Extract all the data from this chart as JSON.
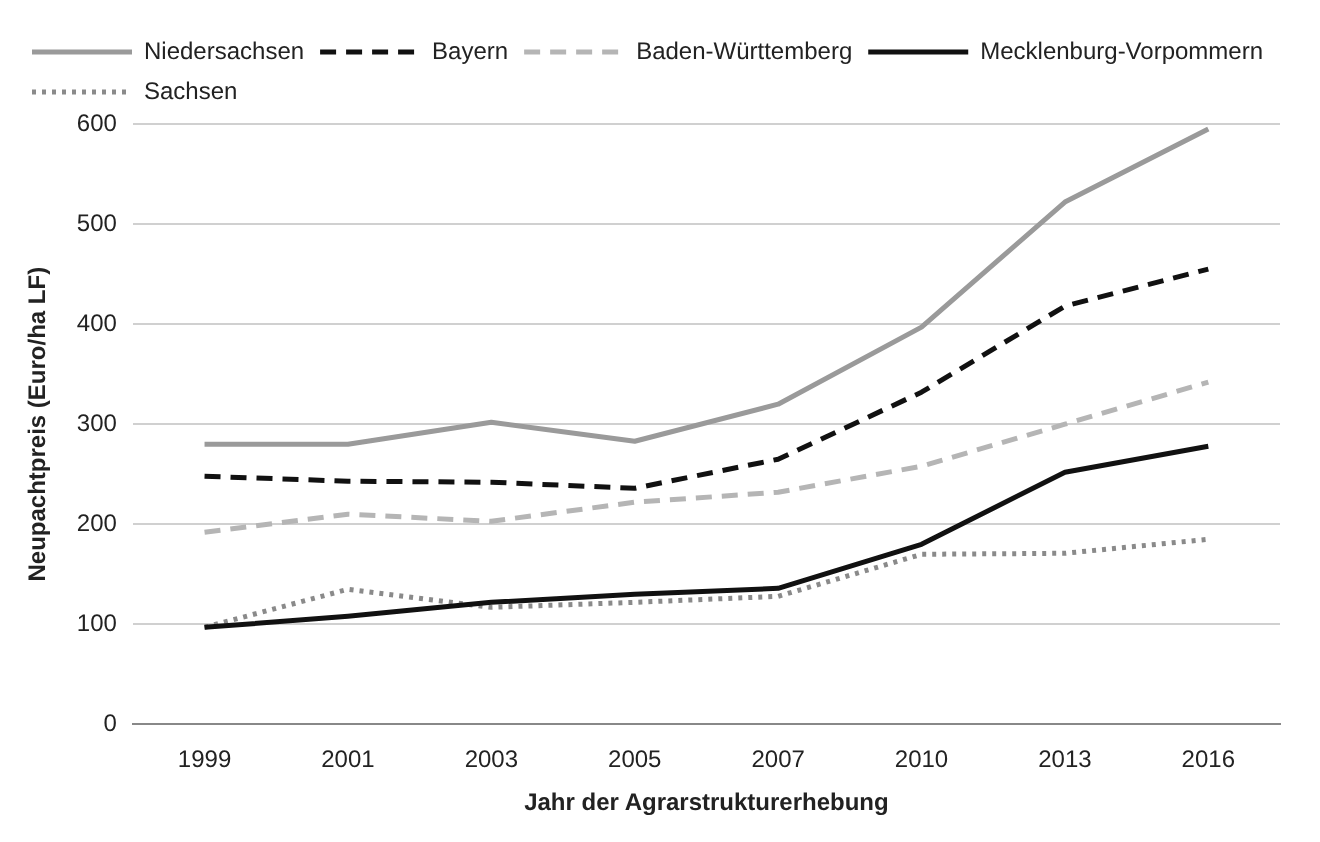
{
  "chart_data": {
    "type": "line",
    "xlabel": "Jahr der Agrarstrukturerhebung",
    "ylabel": "Neupachtpreis (Euro/ha LF)",
    "categories": [
      "1999",
      "2001",
      "2003",
      "2005",
      "2007",
      "2010",
      "2013",
      "2016"
    ],
    "series": [
      {
        "name": "Niedersachsen",
        "color": "#9a9a9a",
        "line_style": "solid",
        "values": [
          280,
          280,
          302,
          283,
          320,
          397,
          522,
          595
        ]
      },
      {
        "name": "Bayern",
        "color": "#111111",
        "line_style": "dashed",
        "values": [
          248,
          243,
          242,
          236,
          265,
          332,
          418,
          455
        ]
      },
      {
        "name": "Baden-Württemberg",
        "color": "#b5b5b5",
        "line_style": "dashed",
        "values": [
          192,
          210,
          203,
          222,
          232,
          258,
          300,
          342
        ]
      },
      {
        "name": "Mecklenburg-Vorpommern",
        "color": "#111111",
        "line_style": "solid",
        "values": [
          97,
          108,
          122,
          130,
          136,
          180,
          252,
          278
        ]
      },
      {
        "name": "Sachsen",
        "color": "#8a8a8a",
        "line_style": "dotted",
        "values": [
          97,
          135,
          117,
          122,
          128,
          170,
          171,
          185
        ]
      }
    ],
    "ylim": [
      0,
      600
    ],
    "yticks": [
      0,
      100,
      200,
      300,
      400,
      500,
      600
    ],
    "grid": "y",
    "legend": "top",
    "marker": "none"
  }
}
